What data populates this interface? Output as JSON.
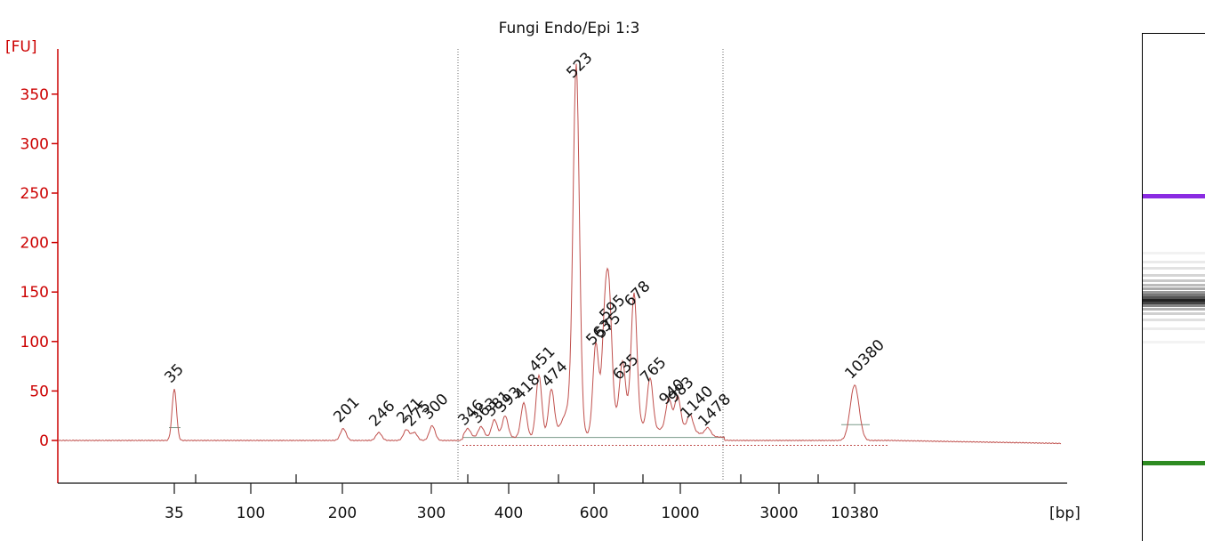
{
  "title": "Fungi Endo/Epi 1:3",
  "chart_data": {
    "type": "line",
    "xlabel": "[bp]",
    "ylabel": "[FU]",
    "ylim": [
      -40,
      380
    ],
    "yticks": [
      0,
      50,
      100,
      150,
      200,
      250,
      300,
      350
    ],
    "x_tick_labels": [
      "35",
      "100",
      "200",
      "300",
      "400",
      "600",
      "1000",
      "3000",
      "10380"
    ],
    "colors": {
      "trace": "#c0504d",
      "axis": "#cc0000",
      "lower_marker": "#2e8b22",
      "upper_marker": "#8a2be2"
    },
    "markers": [
      {
        "label": "35",
        "fu": 52,
        "color": "#2e8b22"
      },
      {
        "label": "10380",
        "fu": 56,
        "color": "#8a2be2"
      }
    ],
    "peaks": [
      {
        "label": "201",
        "fu": 12
      },
      {
        "label": "246",
        "fu": 8
      },
      {
        "label": "271",
        "fu": 11
      },
      {
        "label": "275",
        "fu": 8
      },
      {
        "label": "300",
        "fu": 15
      },
      {
        "label": "346",
        "fu": 9
      },
      {
        "label": "363",
        "fu": 11
      },
      {
        "label": "381",
        "fu": 18
      },
      {
        "label": "393",
        "fu": 22
      },
      {
        "label": "418",
        "fu": 35
      },
      {
        "label": "451",
        "fu": 63
      },
      {
        "label": "474",
        "fu": 48
      },
      {
        "label": "523",
        "fu": 360
      },
      {
        "label": "563",
        "fu": 90
      },
      {
        "label": "575",
        "fu": 97
      },
      {
        "label": "595",
        "fu": 115
      },
      {
        "label": "635",
        "fu": 55
      },
      {
        "label": "678",
        "fu": 129
      },
      {
        "label": "765",
        "fu": 52
      },
      {
        "label": "940",
        "fu": 30
      },
      {
        "label": "983",
        "fu": 32
      },
      {
        "label": "1140",
        "fu": 16
      },
      {
        "label": "1478",
        "fu": 8
      }
    ]
  }
}
